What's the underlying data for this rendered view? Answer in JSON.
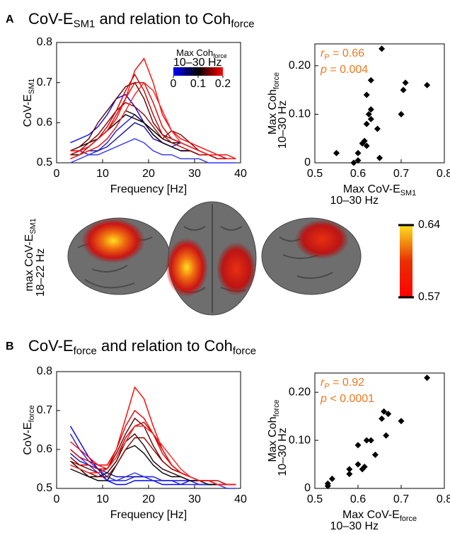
{
  "panels": [
    {
      "label": "A",
      "title": [
        "CoV-E",
        "SM1",
        " and relation to Coh",
        "force"
      ]
    },
    {
      "label": "B",
      "title": [
        "CoV-E",
        "force",
        " and relation to Coh",
        "force"
      ]
    }
  ],
  "brain": {
    "label": [
      "max CoV-E",
      "SM1"
    ],
    "note": "18–22 Hz",
    "colorbar": {
      "lim": [
        0.57,
        0.64
      ],
      "ticks": [
        0.57,
        0.64
      ],
      "colors": [
        "#ff0000",
        "#e83000",
        "#ffe020"
      ]
    }
  },
  "chart_data": [
    {
      "type": "line",
      "xlabel": [
        "Frequency [Hz]"
      ],
      "ylabel": [
        "CoV-E",
        "SM1"
      ],
      "xlim": [
        0,
        40
      ],
      "ylim": [
        0.5,
        0.8
      ],
      "xticks": [
        0,
        10,
        20,
        30,
        40
      ],
      "yticks": [
        0.5,
        0.6,
        0.7,
        0.8
      ],
      "colorbar": {
        "label": [
          "Max Coh",
          "force"
        ],
        "note": "10–30 Hz",
        "lim": [
          0,
          0.2
        ],
        "ticks": [
          0,
          0.1,
          0.2
        ],
        "colors": [
          "#0000ff",
          "#000000",
          "#ff0000"
        ]
      },
      "x": [
        3,
        5,
        7,
        9,
        11,
        13,
        15,
        17,
        19,
        21,
        23,
        25,
        27,
        29,
        31,
        33,
        35,
        37,
        39
      ],
      "series": [
        {
          "color": "#0000ff",
          "values": [
            0.55,
            0.56,
            0.57,
            0.59,
            0.62,
            0.66,
            0.67,
            0.64,
            0.6,
            0.57,
            0.55,
            0.54,
            0.53,
            0.53,
            0.52,
            0.52,
            0.52,
            0.51,
            0.51
          ]
        },
        {
          "color": "#2020e0",
          "values": [
            0.52,
            0.53,
            0.52,
            0.53,
            0.55,
            0.58,
            0.6,
            0.62,
            0.6,
            0.57,
            0.55,
            0.54,
            0.55,
            0.54,
            0.53,
            0.52,
            0.52,
            0.51,
            0.51
          ]
        },
        {
          "color": "#1010a0",
          "values": [
            0.51,
            0.52,
            0.53,
            0.53,
            0.54,
            0.56,
            0.58,
            0.6,
            0.59,
            0.56,
            0.55,
            0.54,
            0.53,
            0.53,
            0.52,
            0.52,
            0.51,
            0.51,
            0.51
          ]
        },
        {
          "color": "#3030ff",
          "values": [
            0.5,
            0.51,
            0.52,
            0.52,
            0.53,
            0.54,
            0.55,
            0.56,
            0.55,
            0.53,
            0.52,
            0.52,
            0.51,
            0.51,
            0.51,
            0.5,
            0.5,
            0.5,
            0.5
          ]
        },
        {
          "color": "#000000",
          "values": [
            0.53,
            0.54,
            0.55,
            0.56,
            0.58,
            0.6,
            0.62,
            0.61,
            0.6,
            0.58,
            0.56,
            0.55,
            0.55,
            0.54,
            0.53,
            0.52,
            0.52,
            0.51,
            0.51
          ]
        },
        {
          "color": "#200000",
          "values": [
            0.52,
            0.52,
            0.53,
            0.54,
            0.56,
            0.59,
            0.63,
            0.62,
            0.6,
            0.57,
            0.55,
            0.54,
            0.53,
            0.53,
            0.52,
            0.52,
            0.51,
            0.51,
            0.51
          ]
        },
        {
          "color": "#600000",
          "values": [
            0.53,
            0.54,
            0.56,
            0.6,
            0.63,
            0.66,
            0.69,
            0.7,
            0.66,
            0.6,
            0.57,
            0.56,
            0.55,
            0.54,
            0.53,
            0.52,
            0.52,
            0.51,
            0.51
          ]
        },
        {
          "color": "#900000",
          "values": [
            0.52,
            0.53,
            0.55,
            0.57,
            0.6,
            0.63,
            0.65,
            0.64,
            0.62,
            0.59,
            0.56,
            0.58,
            0.57,
            0.55,
            0.53,
            0.52,
            0.51,
            0.51,
            0.51
          ]
        },
        {
          "color": "#c00000",
          "values": [
            0.51,
            0.52,
            0.54,
            0.56,
            0.59,
            0.63,
            0.68,
            0.72,
            0.68,
            0.62,
            0.57,
            0.55,
            0.54,
            0.53,
            0.52,
            0.52,
            0.51,
            0.51,
            0.51
          ]
        },
        {
          "color": "#e00000",
          "values": [
            0.52,
            0.53,
            0.54,
            0.56,
            0.58,
            0.62,
            0.66,
            0.7,
            0.7,
            0.65,
            0.59,
            0.56,
            0.55,
            0.54,
            0.53,
            0.52,
            0.52,
            0.51,
            0.51
          ]
        },
        {
          "color": "#ff0000",
          "values": [
            0.53,
            0.53,
            0.54,
            0.56,
            0.58,
            0.61,
            0.66,
            0.73,
            0.76,
            0.7,
            0.62,
            0.58,
            0.56,
            0.55,
            0.54,
            0.53,
            0.52,
            0.52,
            0.51
          ]
        },
        {
          "color": "#ff2020",
          "values": [
            0.51,
            0.52,
            0.53,
            0.54,
            0.56,
            0.59,
            0.63,
            0.67,
            0.7,
            0.68,
            0.63,
            0.58,
            0.55,
            0.54,
            0.53,
            0.52,
            0.52,
            0.51,
            0.51
          ]
        }
      ]
    },
    {
      "type": "scatter",
      "color": "#000000",
      "xlabel": [
        "Max CoV-E",
        "SM1"
      ],
      "xlabel_note": "10–30 Hz",
      "ylabel": [
        "Max Coh",
        "force"
      ],
      "ylabel_note": "10–30 Hz",
      "xlim": [
        0.5,
        0.8
      ],
      "ylim": [
        0,
        0.245
      ],
      "xticks": [
        0.5,
        0.6,
        0.7,
        0.8
      ],
      "yticks": [
        0,
        {
          "value": 0.1,
          "label": "0.10"
        },
        {
          "value": 0.2,
          "label": "0.20"
        }
      ],
      "stats": [
        {
          "symbol": "r",
          "sub": "P",
          "text": " = 0.66"
        },
        {
          "symbol": "p",
          "text": " = 0.004"
        }
      ],
      "x": [
        0.55,
        0.59,
        0.6,
        0.6,
        0.61,
        0.615,
        0.62,
        0.62,
        0.625,
        0.63,
        0.62,
        0.63,
        0.63,
        0.645,
        0.65,
        0.655,
        0.7,
        0.705,
        0.71,
        0.76
      ],
      "values": [
        0.02,
        0.0,
        0.005,
        0.02,
        0.04,
        0.045,
        0.035,
        0.14,
        0.1,
        0.11,
        0.08,
        0.17,
        0.09,
        0.07,
        0.01,
        0.235,
        0.1,
        0.15,
        0.165,
        0.16
      ]
    },
    {
      "type": "line",
      "xlabel": [
        "Frequency [Hz]"
      ],
      "ylabel": [
        "CoV-E",
        "force"
      ],
      "xlim": [
        0,
        40
      ],
      "ylim": [
        0.5,
        0.8
      ],
      "xticks": [
        0,
        10,
        20,
        30,
        40
      ],
      "yticks": [
        0.5,
        0.6,
        0.7,
        0.8
      ],
      "x": [
        3,
        5,
        7,
        9,
        11,
        13,
        15,
        17,
        19,
        21,
        23,
        25,
        27,
        29,
        31,
        33,
        35,
        37,
        39
      ],
      "series": [
        {
          "color": "#0000ff",
          "values": [
            0.66,
            0.62,
            0.58,
            0.55,
            0.52,
            0.51,
            0.51,
            0.52,
            0.52,
            0.52,
            0.51,
            0.51,
            0.51,
            0.52,
            0.51,
            0.51,
            0.51,
            0.51,
            0.51
          ]
        },
        {
          "color": "#2020e0",
          "values": [
            0.64,
            0.6,
            0.57,
            0.55,
            0.53,
            0.52,
            0.52,
            0.53,
            0.53,
            0.52,
            0.52,
            0.52,
            0.51,
            0.51,
            0.51,
            0.51,
            0.51,
            0.51,
            0.51
          ]
        },
        {
          "color": "#1010a0",
          "values": [
            0.59,
            0.57,
            0.56,
            0.55,
            0.54,
            0.53,
            0.53,
            0.53,
            0.53,
            0.53,
            0.52,
            0.52,
            0.52,
            0.52,
            0.51,
            0.51,
            0.51,
            0.51,
            0.51
          ]
        },
        {
          "color": "#3030ff",
          "values": [
            0.6,
            0.58,
            0.56,
            0.54,
            0.52,
            0.52,
            0.53,
            0.54,
            0.53,
            0.53,
            0.52,
            0.52,
            0.52,
            0.52,
            0.51,
            0.51,
            0.51,
            0.5,
            0.5
          ]
        },
        {
          "color": "#000000",
          "values": [
            0.57,
            0.55,
            0.53,
            0.52,
            0.52,
            0.56,
            0.6,
            0.61,
            0.59,
            0.56,
            0.54,
            0.53,
            0.53,
            0.52,
            0.52,
            0.51,
            0.51,
            0.51,
            0.51
          ]
        },
        {
          "color": "#200000",
          "values": [
            0.55,
            0.54,
            0.53,
            0.53,
            0.54,
            0.57,
            0.62,
            0.64,
            0.61,
            0.57,
            0.55,
            0.54,
            0.53,
            0.52,
            0.52,
            0.52,
            0.51,
            0.51,
            0.51
          ]
        },
        {
          "color": "#600000",
          "values": [
            0.58,
            0.56,
            0.55,
            0.54,
            0.55,
            0.59,
            0.64,
            0.68,
            0.66,
            0.61,
            0.57,
            0.55,
            0.54,
            0.53,
            0.52,
            0.52,
            0.51,
            0.51,
            0.51
          ]
        },
        {
          "color": "#900000",
          "values": [
            0.56,
            0.55,
            0.54,
            0.53,
            0.53,
            0.56,
            0.6,
            0.63,
            0.63,
            0.6,
            0.57,
            0.55,
            0.54,
            0.53,
            0.52,
            0.52,
            0.51,
            0.51,
            0.51
          ]
        },
        {
          "color": "#c00000",
          "values": [
            0.57,
            0.56,
            0.56,
            0.55,
            0.55,
            0.58,
            0.63,
            0.66,
            0.67,
            0.64,
            0.6,
            0.56,
            0.54,
            0.53,
            0.52,
            0.52,
            0.52,
            0.51,
            0.51
          ]
        },
        {
          "color": "#e00000",
          "values": [
            0.6,
            0.58,
            0.57,
            0.56,
            0.56,
            0.6,
            0.66,
            0.7,
            0.68,
            0.64,
            0.59,
            0.56,
            0.54,
            0.53,
            0.52,
            0.52,
            0.51,
            0.51,
            0.51
          ]
        },
        {
          "color": "#ff0000",
          "values": [
            0.62,
            0.6,
            0.58,
            0.56,
            0.55,
            0.6,
            0.68,
            0.76,
            0.73,
            0.66,
            0.6,
            0.56,
            0.54,
            0.53,
            0.52,
            0.52,
            0.51,
            0.51,
            0.51
          ]
        },
        {
          "color": "#ff2020",
          "values": [
            0.56,
            0.55,
            0.54,
            0.54,
            0.55,
            0.58,
            0.62,
            0.66,
            0.66,
            0.64,
            0.61,
            0.58,
            0.55,
            0.53,
            0.52,
            0.52,
            0.51,
            0.51,
            0.51
          ]
        }
      ]
    },
    {
      "type": "scatter",
      "color": "#000000",
      "xlabel": [
        "Max CoV-E",
        "force"
      ],
      "xlabel_note": "10–30 Hz",
      "ylabel": [
        "Max Coh",
        "force"
      ],
      "ylabel_note": "10–30 Hz",
      "xlim": [
        0.5,
        0.8
      ],
      "ylim": [
        0,
        0.24
      ],
      "xticks": [
        0.5,
        0.6,
        0.7,
        0.8
      ],
      "yticks": [
        0,
        {
          "value": 0.1,
          "label": "0.10"
        },
        {
          "value": 0.2,
          "label": "0.20"
        }
      ],
      "stats": [
        {
          "symbol": "r",
          "sub": "P",
          "text": " = 0.92"
        },
        {
          "symbol": "p",
          "text": " < 0.0001"
        }
      ],
      "x": [
        0.53,
        0.53,
        0.54,
        0.58,
        0.58,
        0.6,
        0.61,
        0.615,
        0.62,
        0.63,
        0.64,
        0.655,
        0.66,
        0.665,
        0.67,
        0.7,
        0.76,
        0.6
      ],
      "values": [
        0.005,
        0.01,
        0.02,
        0.03,
        0.04,
        0.09,
        0.04,
        0.045,
        0.1,
        0.1,
        0.07,
        0.145,
        0.16,
        0.11,
        0.155,
        0.14,
        0.23,
        0.05
      ]
    }
  ]
}
